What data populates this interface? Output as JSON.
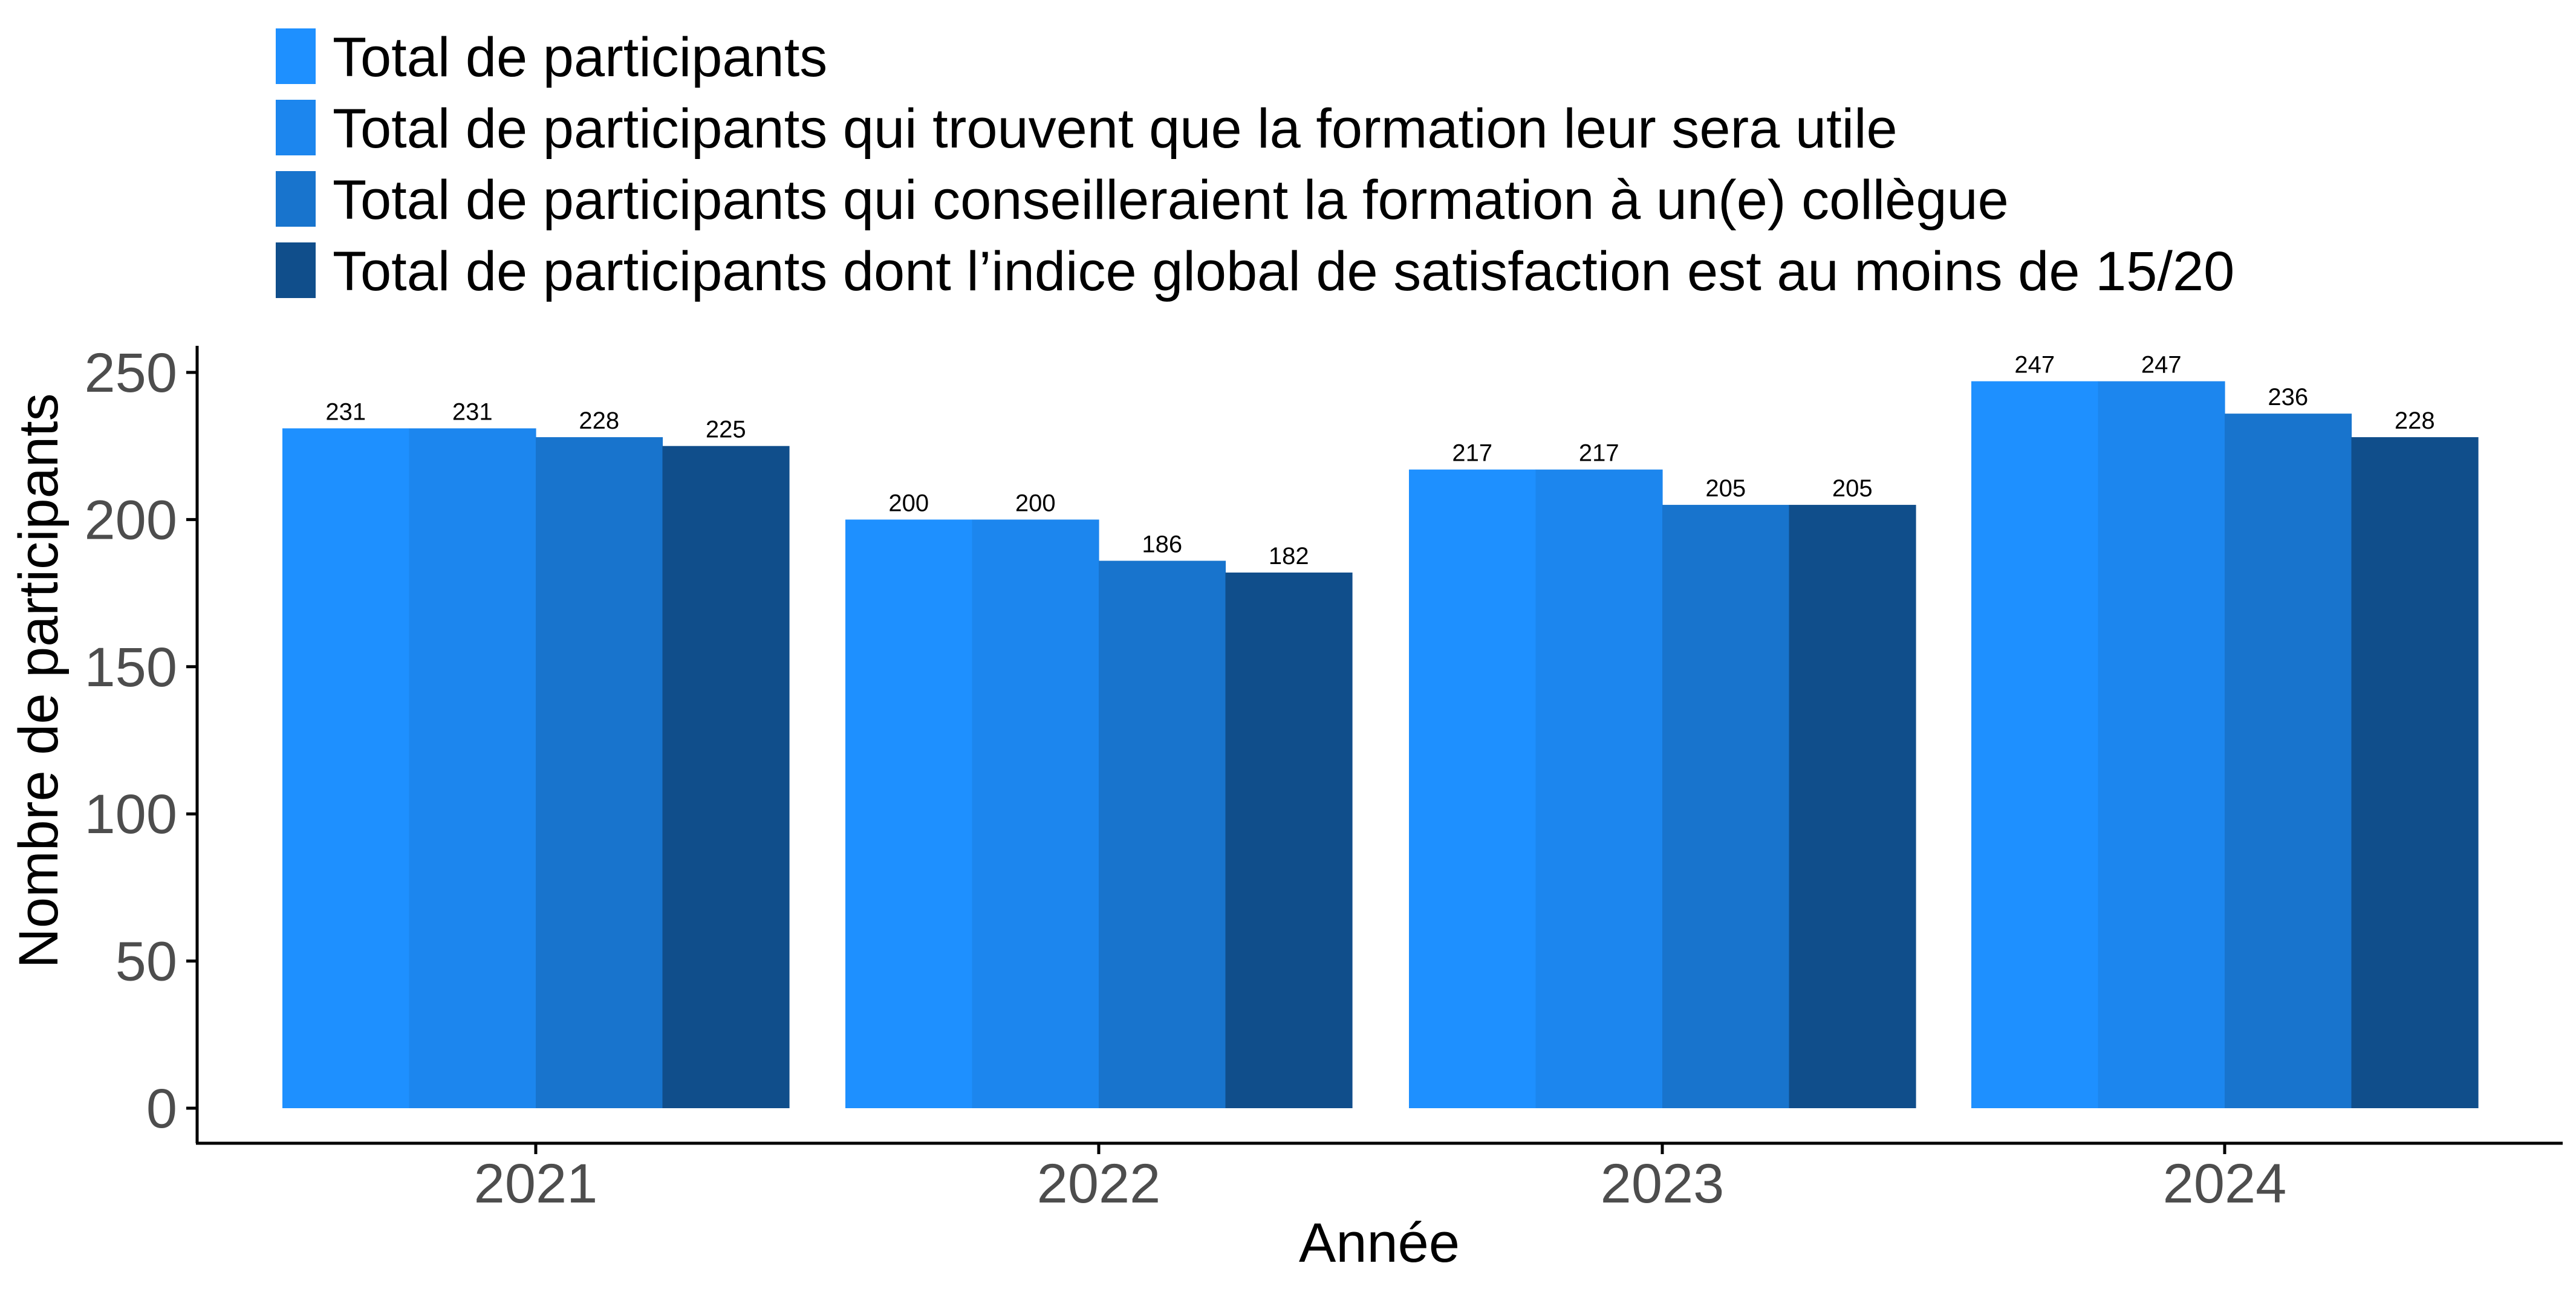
{
  "chart_data": {
    "type": "bar",
    "categories": [
      "2021",
      "2022",
      "2023",
      "2024"
    ],
    "series": [
      {
        "name": "Total de participants",
        "color": "#1E90FF",
        "values": [
          231,
          200,
          217,
          247
        ]
      },
      {
        "name": "Total de participants qui trouvent que la formation leur sera utile",
        "color": "#1C86EE",
        "values": [
          231,
          200,
          217,
          247
        ]
      },
      {
        "name": "Total de participants qui conseilleraient la formation à un(e) collègue",
        "color": "#1874CD",
        "values": [
          228,
          186,
          205,
          236
        ]
      },
      {
        "name": "Total de participants dont l’indice global de satisfaction est au moins de 15/20",
        "color": "#104E8B",
        "values": [
          225,
          182,
          205,
          228
        ]
      }
    ],
    "xlabel": "Année",
    "ylabel": "Nombre de participants",
    "ylim": [
      0,
      260
    ],
    "yticks": [
      0,
      50,
      100,
      150,
      200,
      250
    ],
    "grid": false,
    "legend_position": "top-left"
  }
}
